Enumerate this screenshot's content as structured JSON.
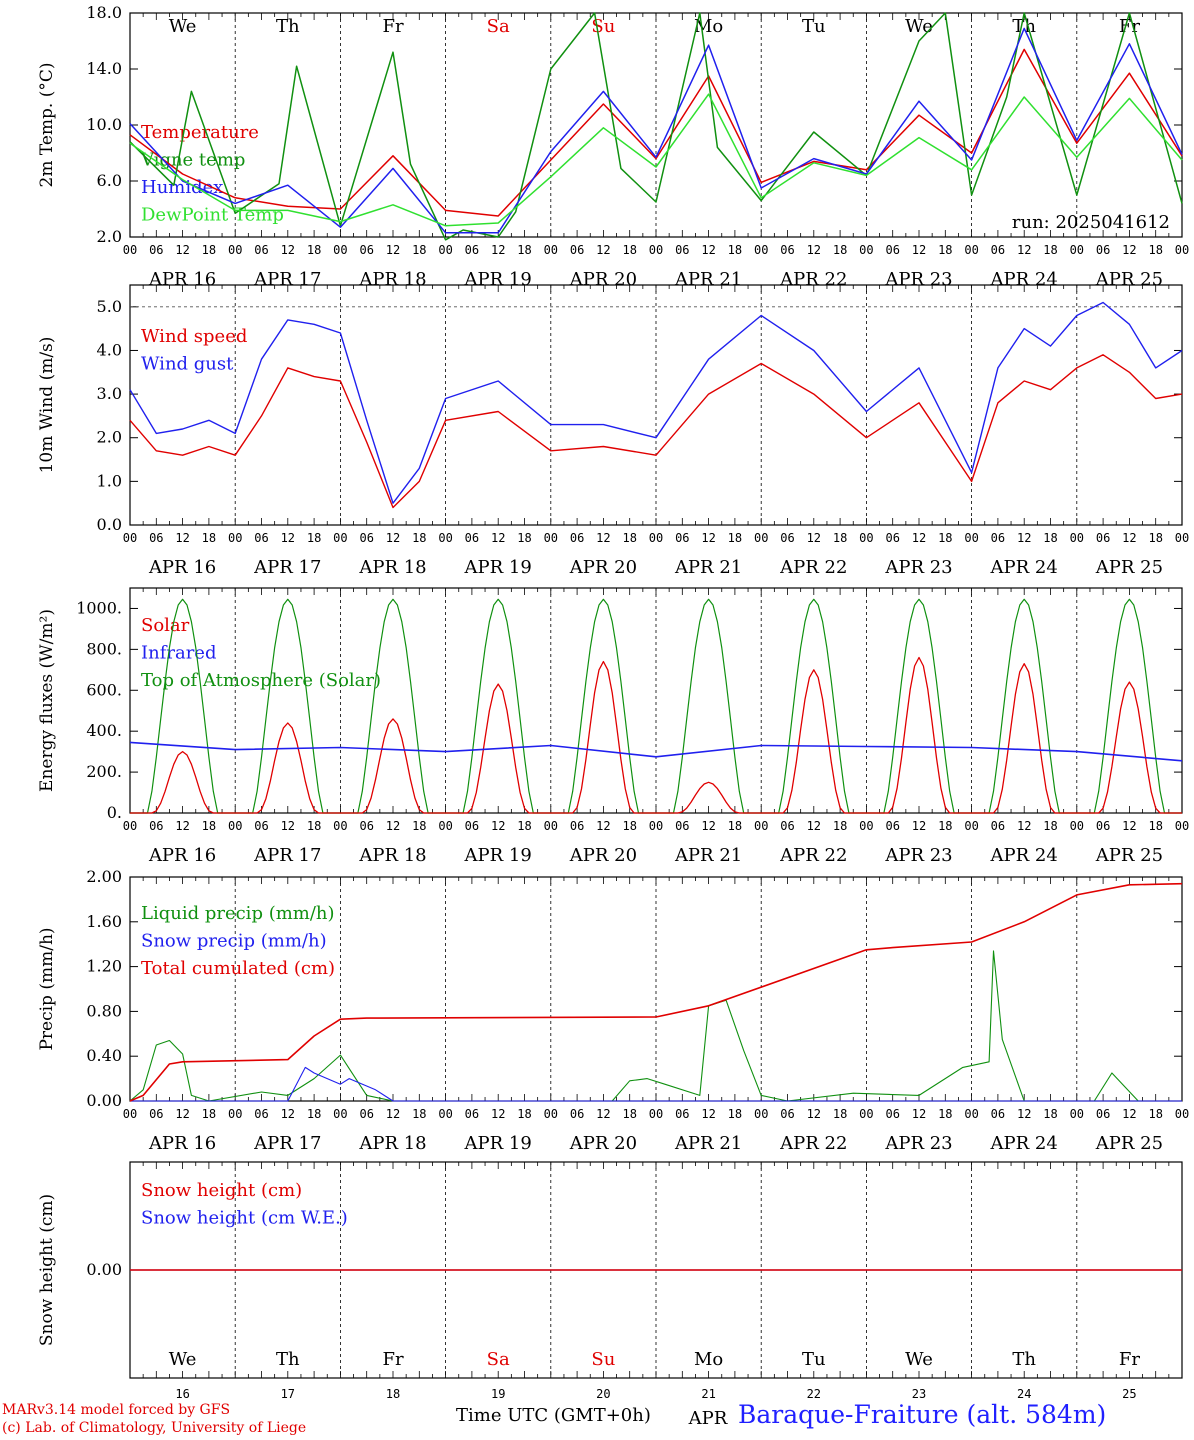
{
  "colors": {
    "red": "#e00000",
    "green": "#109010",
    "blue": "#2020ee",
    "light_green": "#30e030",
    "grid": "#000000"
  },
  "day_names": [
    "We",
    "Th",
    "Fr",
    "Sa",
    "Su",
    "Mo",
    "Tu",
    "We",
    "Th",
    "Fr"
  ],
  "weekend_day_indices": [
    3,
    4
  ],
  "date_labels": [
    "APR 16",
    "APR 17",
    "APR 18",
    "APR 19",
    "APR 20",
    "APR 21",
    "APR 22",
    "APR 23",
    "APR 24",
    "APR 25"
  ],
  "hour_ticks": [
    "00",
    "06",
    "12",
    "18"
  ],
  "final_tick": "00",
  "day_numbers": [
    "16",
    "17",
    "18",
    "19",
    "20",
    "21",
    "22",
    "23",
    "24",
    "25"
  ],
  "month_label": "APR",
  "footer": {
    "model": "MARv3.14 model forced by GFS",
    "credit": "(c) Lab. of Climatology, University of Liege",
    "time_label": "Time UTC (GMT+0h)",
    "station": "Baraque-Fraiture (alt. 584m)"
  },
  "run_label": "run: 2025041612",
  "chart_data": [
    {
      "type": "line",
      "ylabel": "2m Temp. (°C)",
      "ylim": [
        2.0,
        18.0
      ],
      "yticks": [
        "2.0",
        "6.0",
        "10.0",
        "14.0",
        "18.0"
      ],
      "x_unit": "hours since APR 16 00 UTC",
      "series": [
        {
          "name": "Temperature",
          "color": "red",
          "x": [
            0,
            12,
            24,
            36,
            48,
            60,
            72,
            84,
            96,
            108,
            120,
            132,
            144,
            156,
            168,
            180,
            192,
            204,
            216,
            228,
            240
          ],
          "values": [
            9.3,
            6.5,
            4.8,
            4.2,
            4.0,
            7.8,
            3.9,
            3.5,
            7.5,
            11.5,
            7.6,
            13.5,
            5.9,
            7.4,
            6.8,
            10.7,
            8.0,
            15.4,
            8.7,
            13.7,
            7.8
          ]
        },
        {
          "name": "Vigne temp",
          "color": "green",
          "x": [
            0,
            10,
            14,
            24,
            34,
            38,
            48,
            60,
            64,
            72,
            76,
            84,
            88,
            96,
            106,
            112,
            120,
            130,
            134,
            144,
            156,
            168,
            180,
            186,
            192,
            200,
            204,
            216,
            228,
            240
          ],
          "values": [
            8.8,
            5.7,
            12.4,
            3.7,
            5.8,
            14.2,
            2.8,
            15.2,
            7.2,
            1.8,
            2.5,
            2.0,
            3.8,
            14.0,
            18.0,
            6.9,
            4.5,
            18.0,
            8.4,
            4.6,
            9.5,
            6.4,
            16.0,
            18.0,
            5.0,
            12.0,
            18.0,
            5.0,
            18.0,
            4.4
          ]
        },
        {
          "name": "Humidex",
          "color": "blue",
          "x": [
            0,
            12,
            24,
            36,
            48,
            60,
            72,
            84,
            96,
            108,
            120,
            132,
            144,
            156,
            168,
            180,
            192,
            204,
            216,
            228,
            240
          ],
          "values": [
            10.1,
            6.0,
            4.4,
            5.7,
            2.7,
            6.9,
            2.3,
            2.3,
            8.1,
            12.4,
            7.7,
            15.7,
            5.5,
            7.6,
            6.5,
            11.7,
            7.5,
            16.9,
            8.9,
            15.8,
            7.9
          ]
        },
        {
          "name": "DewPoint Temp",
          "color": "light_green",
          "x": [
            0,
            12,
            24,
            36,
            48,
            60,
            72,
            84,
            96,
            108,
            120,
            132,
            144,
            156,
            168,
            180,
            192,
            204,
            216,
            228,
            240
          ],
          "values": [
            8.7,
            6.1,
            3.9,
            3.9,
            3.1,
            4.3,
            2.8,
            3.0,
            6.3,
            9.8,
            7.0,
            12.2,
            4.8,
            7.3,
            6.4,
            9.1,
            6.8,
            12.0,
            7.7,
            11.9,
            7.5
          ]
        }
      ]
    },
    {
      "type": "line",
      "ylabel": "10m Wind (m/s)",
      "ylim": [
        0.0,
        5.5
      ],
      "yticks": [
        "0.0",
        "1.0",
        "2.0",
        "3.0",
        "4.0",
        "5.0"
      ],
      "reference_line": 5.0,
      "x_unit": "hours since APR 16 00 UTC",
      "series": [
        {
          "name": "Wind speed",
          "color": "red",
          "x": [
            0,
            6,
            12,
            18,
            24,
            30,
            36,
            42,
            48,
            54,
            60,
            66,
            72,
            84,
            96,
            108,
            120,
            132,
            144,
            156,
            168,
            180,
            192,
            198,
            204,
            210,
            216,
            222,
            228,
            234,
            240
          ],
          "values": [
            2.4,
            1.7,
            1.6,
            1.8,
            1.6,
            2.5,
            3.6,
            3.4,
            3.3,
            1.9,
            0.4,
            1.0,
            2.4,
            2.6,
            1.7,
            1.8,
            1.6,
            3.0,
            3.7,
            3.0,
            2.0,
            2.8,
            1.0,
            2.8,
            3.3,
            3.1,
            3.6,
            3.9,
            3.5,
            2.9,
            3.0
          ]
        },
        {
          "name": "Wind gust",
          "color": "blue",
          "x": [
            0,
            6,
            12,
            18,
            24,
            30,
            36,
            42,
            48,
            54,
            60,
            66,
            72,
            84,
            96,
            108,
            120,
            132,
            144,
            156,
            168,
            180,
            192,
            198,
            204,
            210,
            216,
            222,
            228,
            234,
            240
          ],
          "values": [
            3.1,
            2.1,
            2.2,
            2.4,
            2.1,
            3.8,
            4.7,
            4.6,
            4.4,
            2.4,
            0.5,
            1.3,
            2.9,
            3.3,
            2.3,
            2.3,
            2.0,
            3.8,
            4.8,
            4.0,
            2.6,
            3.6,
            1.2,
            3.6,
            4.5,
            4.1,
            4.8,
            5.1,
            4.6,
            3.6,
            4.0
          ]
        }
      ]
    },
    {
      "type": "line",
      "ylabel": "Energy fluxes (W/m²)",
      "ylim": [
        0,
        1100
      ],
      "yticks": [
        "0.",
        "200.",
        "400.",
        "600.",
        "800.",
        "1000."
      ],
      "x_unit": "hours since APR 16 00 UTC",
      "series": [
        {
          "name": "Solar",
          "color": "red",
          "solar_peaks": [
            300,
            440,
            460,
            630,
            740,
            150,
            700,
            760,
            730,
            640
          ]
        },
        {
          "name": "Infrared",
          "color": "blue",
          "x": [
            0,
            24,
            48,
            72,
            96,
            120,
            144,
            168,
            192,
            216,
            240
          ],
          "values": [
            345,
            310,
            320,
            300,
            330,
            275,
            330,
            325,
            320,
            300,
            255
          ]
        },
        {
          "name": "Top of Atmosphere (Solar)",
          "color": "green",
          "daily_peak": 1045
        }
      ]
    },
    {
      "type": "line",
      "ylabel": "Precip (mm/h)",
      "ylim": [
        0.0,
        2.0
      ],
      "yticks": [
        "0.00",
        "0.40",
        "0.80",
        "1.20",
        "1.60",
        "2.00"
      ],
      "x_unit": "hours since APR 16 00 UTC",
      "series": [
        {
          "name": "Liquid precip (mm/h)",
          "color": "green",
          "x": [
            0,
            3,
            6,
            9,
            12,
            14,
            18,
            30,
            36,
            42,
            48,
            54,
            60,
            84,
            110,
            114,
            118,
            122,
            130,
            132,
            136,
            140,
            144,
            150,
            165,
            180,
            190,
            196,
            197,
            199,
            204,
            220,
            224,
            230,
            240
          ],
          "values": [
            0,
            0.1,
            0.5,
            0.54,
            0.42,
            0.05,
            0,
            0.08,
            0.05,
            0.2,
            0.41,
            0.05,
            0,
            0,
            0,
            0.18,
            0.2,
            0.15,
            0.05,
            0.85,
            0.9,
            0.45,
            0.05,
            0,
            0.07,
            0.05,
            0.3,
            0.35,
            1.34,
            0.55,
            0,
            0,
            0.25,
            0,
            0
          ]
        },
        {
          "name": "Snow precip (mm/h)",
          "color": "blue",
          "x": [
            0,
            36,
            40,
            42,
            48,
            50,
            56,
            60,
            240
          ],
          "values": [
            0,
            0,
            0.3,
            0.25,
            0.15,
            0.2,
            0.1,
            0,
            0
          ]
        },
        {
          "name": "Total cumulated (cm)",
          "color": "red",
          "x": [
            0,
            3,
            9,
            12,
            36,
            42,
            48,
            54,
            120,
            132,
            168,
            174,
            192,
            204,
            216,
            228,
            240
          ],
          "values": [
            0,
            0.05,
            0.33,
            0.35,
            0.37,
            0.58,
            0.73,
            0.74,
            0.75,
            0.85,
            1.35,
            1.37,
            1.42,
            1.6,
            1.84,
            1.93,
            1.94
          ]
        }
      ]
    },
    {
      "type": "line",
      "ylabel": "Snow height (cm)",
      "yticks": [
        "0.00"
      ],
      "x_unit": "hours since APR 16 00 UTC",
      "series": [
        {
          "name": "Snow height (cm)",
          "color": "red",
          "x": [
            0,
            240
          ],
          "values": [
            0.0,
            0.0
          ]
        },
        {
          "name": "Snow height (cm W.E.)",
          "color": "blue",
          "x": [
            0,
            240
          ],
          "values": [
            0.0,
            0.0
          ]
        }
      ]
    }
  ]
}
